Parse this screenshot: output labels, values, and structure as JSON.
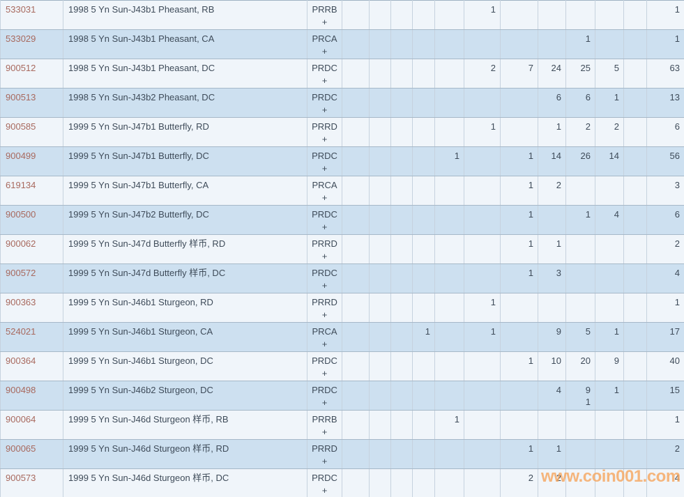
{
  "watermark": {
    "text": "www.coin001.com",
    "color": "#f5a760"
  },
  "colors": {
    "link": "#a8695e",
    "row_light": "#f0f5fa",
    "row_blue": "#cde0f0",
    "text": "#3e4b59",
    "grid": "#a6b8c8"
  },
  "table": {
    "value_column_count": 11,
    "rows": [
      {
        "id": "533031",
        "description": "1998 5 Yn Sun-J43b1 Pheasant, RB",
        "code": "PRRB",
        "plus": "+",
        "values": [
          "",
          "",
          "",
          "",
          "",
          "1",
          "",
          "",
          "",
          "",
          ""
        ],
        "total": "1"
      },
      {
        "id": "533029",
        "description": "1998 5 Yn Sun-J43b1 Pheasant, CA",
        "code": "PRCA",
        "plus": "+",
        "values": [
          "",
          "",
          "",
          "",
          "",
          "",
          "",
          "",
          "1",
          "",
          ""
        ],
        "total": "1"
      },
      {
        "id": "900512",
        "description": "1998 5 Yn Sun-J43b1 Pheasant, DC",
        "code": "PRDC",
        "plus": "+",
        "values": [
          "",
          "",
          "",
          "",
          "",
          "2",
          "7",
          "24",
          "25",
          "5",
          ""
        ],
        "total": "63"
      },
      {
        "id": "900513",
        "description": "1998 5 Yn Sun-J43b2 Pheasant, DC",
        "code": "PRDC",
        "plus": "+",
        "values": [
          "",
          "",
          "",
          "",
          "",
          "",
          "",
          "6",
          "6",
          "1",
          ""
        ],
        "total": "13"
      },
      {
        "id": "900585",
        "description": "1999 5 Yn Sun-J47b1 Butterfly, RD",
        "code": "PRRD",
        "plus": "+",
        "values": [
          "",
          "",
          "",
          "",
          "",
          "1",
          "",
          "1",
          "2",
          "2",
          ""
        ],
        "total": "6"
      },
      {
        "id": "900499",
        "description": "1999 5 Yn Sun-J47b1 Butterfly, DC",
        "code": "PRDC",
        "plus": "+",
        "values": [
          "",
          "",
          "",
          "",
          "1",
          "",
          "1",
          "14",
          "26",
          "14",
          ""
        ],
        "total": "56"
      },
      {
        "id": "619134",
        "description": "1999 5 Yn Sun-J47b1 Butterfly, CA",
        "code": "PRCA",
        "plus": "+",
        "values": [
          "",
          "",
          "",
          "",
          "",
          "",
          "1",
          "2",
          "",
          "",
          ""
        ],
        "total": "3"
      },
      {
        "id": "900500",
        "description": "1999 5 Yn Sun-J47b2 Butterfly, DC",
        "code": "PRDC",
        "plus": "+",
        "values": [
          "",
          "",
          "",
          "",
          "",
          "",
          "1",
          "",
          "1",
          "4",
          ""
        ],
        "total": "6"
      },
      {
        "id": "900062",
        "description": "1999 5 Yn Sun-J47d Butterfly 样币, RD",
        "code": "PRRD",
        "plus": "+",
        "values": [
          "",
          "",
          "",
          "",
          "",
          "",
          "1",
          "1",
          "",
          "",
          ""
        ],
        "total": "2"
      },
      {
        "id": "900572",
        "description": "1999 5 Yn Sun-J47d Butterfly 样币, DC",
        "code": "PRDC",
        "plus": "+",
        "values": [
          "",
          "",
          "",
          "",
          "",
          "",
          "1",
          "3",
          "",
          "",
          ""
        ],
        "total": "4"
      },
      {
        "id": "900363",
        "description": "1999 5 Yn Sun-J46b1 Sturgeon, RD",
        "code": "PRRD",
        "plus": "+",
        "values": [
          "",
          "",
          "",
          "",
          "",
          "1",
          "",
          "",
          "",
          "",
          ""
        ],
        "total": "1"
      },
      {
        "id": "524021",
        "description": "1999 5 Yn Sun-J46b1 Sturgeon, CA",
        "code": "PRCA",
        "plus": "+",
        "values": [
          "",
          "",
          "",
          "1",
          "",
          "1",
          "",
          "9",
          "5",
          "1",
          ""
        ],
        "total": "17"
      },
      {
        "id": "900364",
        "description": "1999 5 Yn Sun-J46b1 Sturgeon, DC",
        "code": "PRDC",
        "plus": "+",
        "values": [
          "",
          "",
          "",
          "",
          "",
          "",
          "1",
          "10",
          "20",
          "9",
          ""
        ],
        "total": "40"
      },
      {
        "id": "900498",
        "description": "1999 5 Yn Sun-J46b2 Sturgeon, DC",
        "code": "PRDC",
        "plus": "+",
        "values": [
          "",
          "",
          "",
          "",
          "",
          "",
          "",
          "4",
          "9\n1",
          "1",
          ""
        ],
        "total": "15"
      },
      {
        "id": "900064",
        "description": "1999 5 Yn Sun-J46d Sturgeon 样币, RB",
        "code": "PRRB",
        "plus": "+",
        "values": [
          "",
          "",
          "",
          "",
          "1",
          "",
          "",
          "",
          "",
          "",
          ""
        ],
        "total": "1"
      },
      {
        "id": "900065",
        "description": "1999 5 Yn Sun-J46d Sturgeon 样币, RD",
        "code": "PRRD",
        "plus": "+",
        "values": [
          "",
          "",
          "",
          "",
          "",
          "",
          "1",
          "1",
          "",
          "",
          ""
        ],
        "total": "2"
      },
      {
        "id": "900573",
        "description": "1999 5 Yn Sun-J46d Sturgeon 样币, DC",
        "code": "PRDC",
        "plus": "+",
        "values": [
          "",
          "",
          "",
          "",
          "",
          "",
          "2",
          "2",
          "",
          "",
          ""
        ],
        "total": "4"
      }
    ]
  }
}
